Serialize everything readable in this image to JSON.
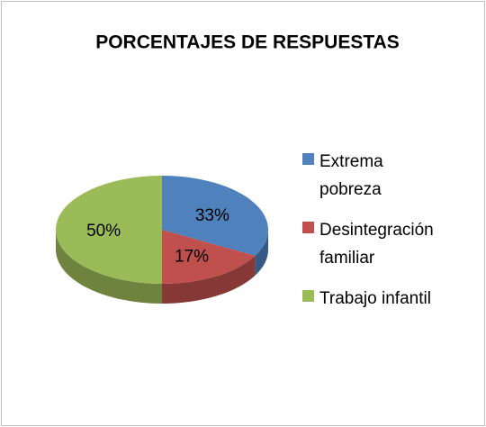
{
  "chart_data": {
    "type": "pie",
    "title": "PORCENTAJES DE RESPUESTAS",
    "categories": [
      "Extrema pobreza",
      "Desintegración familiar",
      "Trabajo infantil"
    ],
    "values": [
      33,
      17,
      50
    ],
    "value_labels": [
      "33%",
      "17%",
      "50%"
    ],
    "colors": [
      "#4f81bd",
      "#c0504d",
      "#9bbb59"
    ],
    "legend": "right"
  }
}
